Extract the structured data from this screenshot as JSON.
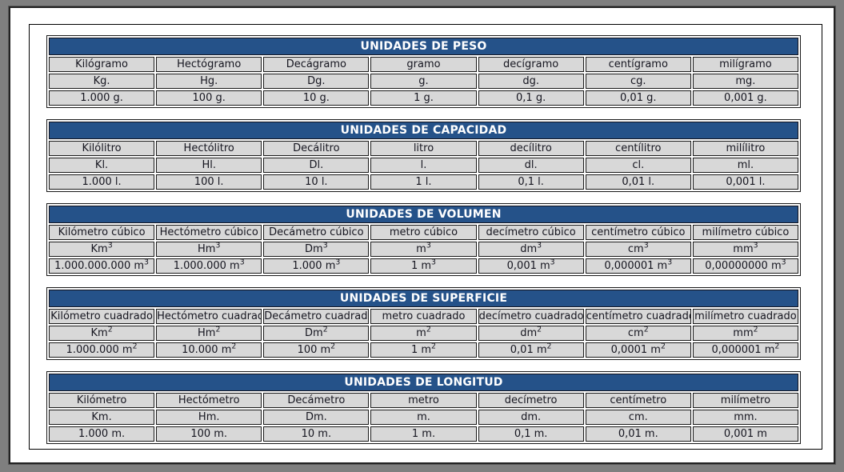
{
  "colors": {
    "frame_background": "#7f7f7f",
    "page_background": "#ffffff",
    "title_bar_background": "#255289",
    "title_text": "#ffffff",
    "cell_background": "#d8d8d8",
    "cell_text": "#15151f",
    "border": "#1a1a1a"
  },
  "tables": [
    {
      "title": "UNIDADES DE PESO",
      "rows": [
        [
          "Kilógramo",
          "Hectógramo",
          "Decágramo",
          "gramo",
          "decígramo",
          "centígramo",
          "milígramo"
        ],
        [
          "Kg.",
          "Hg.",
          "Dg.",
          "g.",
          "dg.",
          "cg.",
          "mg."
        ],
        [
          "1.000 g.",
          "100 g.",
          "10 g.",
          "1 g.",
          "0,1 g.",
          "0,01 g.",
          "0,001 g."
        ]
      ]
    },
    {
      "title": "UNIDADES DE CAPACIDAD",
      "rows": [
        [
          "Kilólitro",
          "Hectólitro",
          "Decálitro",
          "litro",
          "decílitro",
          "centílitro",
          "milílitro"
        ],
        [
          "Kl.",
          "Hl.",
          "Dl.",
          "l.",
          "dl.",
          "cl.",
          "ml."
        ],
        [
          "1.000 l.",
          "100 l.",
          "10 l.",
          "1 l.",
          "0,1 l.",
          "0,01 l.",
          "0,001 l."
        ]
      ]
    },
    {
      "title": "UNIDADES DE VOLUMEN",
      "rows": [
        [
          "Kilómetro cúbico",
          "Hectómetro cúbico",
          "Decámetro cúbico",
          "metro cúbico",
          "decímetro cúbico",
          "centímetro cúbico",
          "milímetro cúbico"
        ],
        [
          "Km³",
          "Hm³",
          "Dm³",
          "m³",
          "dm³",
          "cm³",
          "mm³"
        ],
        [
          "1.000.000.000 m³",
          "1.000.000 m³",
          "1.000 m³",
          "1 m³",
          "0,001 m³",
          "0,000001 m³",
          "0,00000000 m³"
        ]
      ]
    },
    {
      "title": "UNIDADES DE SUPERFICIE",
      "rows": [
        [
          "Kilómetro cuadrado",
          "Hectómetro cuadrado",
          "Decámetro cuadrado",
          "metro cuadrado",
          "decímetro cuadrado",
          "centímetro cuadrado",
          "milímetro cuadrado"
        ],
        [
          "Km²",
          "Hm²",
          "Dm²",
          "m²",
          "dm²",
          "cm²",
          "mm²"
        ],
        [
          "1.000.000 m²",
          "10.000 m²",
          "100 m²",
          "1 m²",
          "0,01 m²",
          "0,0001 m²",
          "0,000001 m²"
        ]
      ]
    },
    {
      "title": "UNIDADES DE LONGITUD",
      "rows": [
        [
          "Kilómetro",
          "Hectómetro",
          "Decámetro",
          "metro",
          "decímetro",
          "centímetro",
          "milímetro"
        ],
        [
          "Km.",
          "Hm.",
          "Dm.",
          "m.",
          "dm.",
          "cm.",
          "mm."
        ],
        [
          "1.000 m.",
          "100 m.",
          "10 m.",
          "1 m.",
          "0,1 m.",
          "0,01 m.",
          "0,001 m"
        ]
      ]
    }
  ]
}
